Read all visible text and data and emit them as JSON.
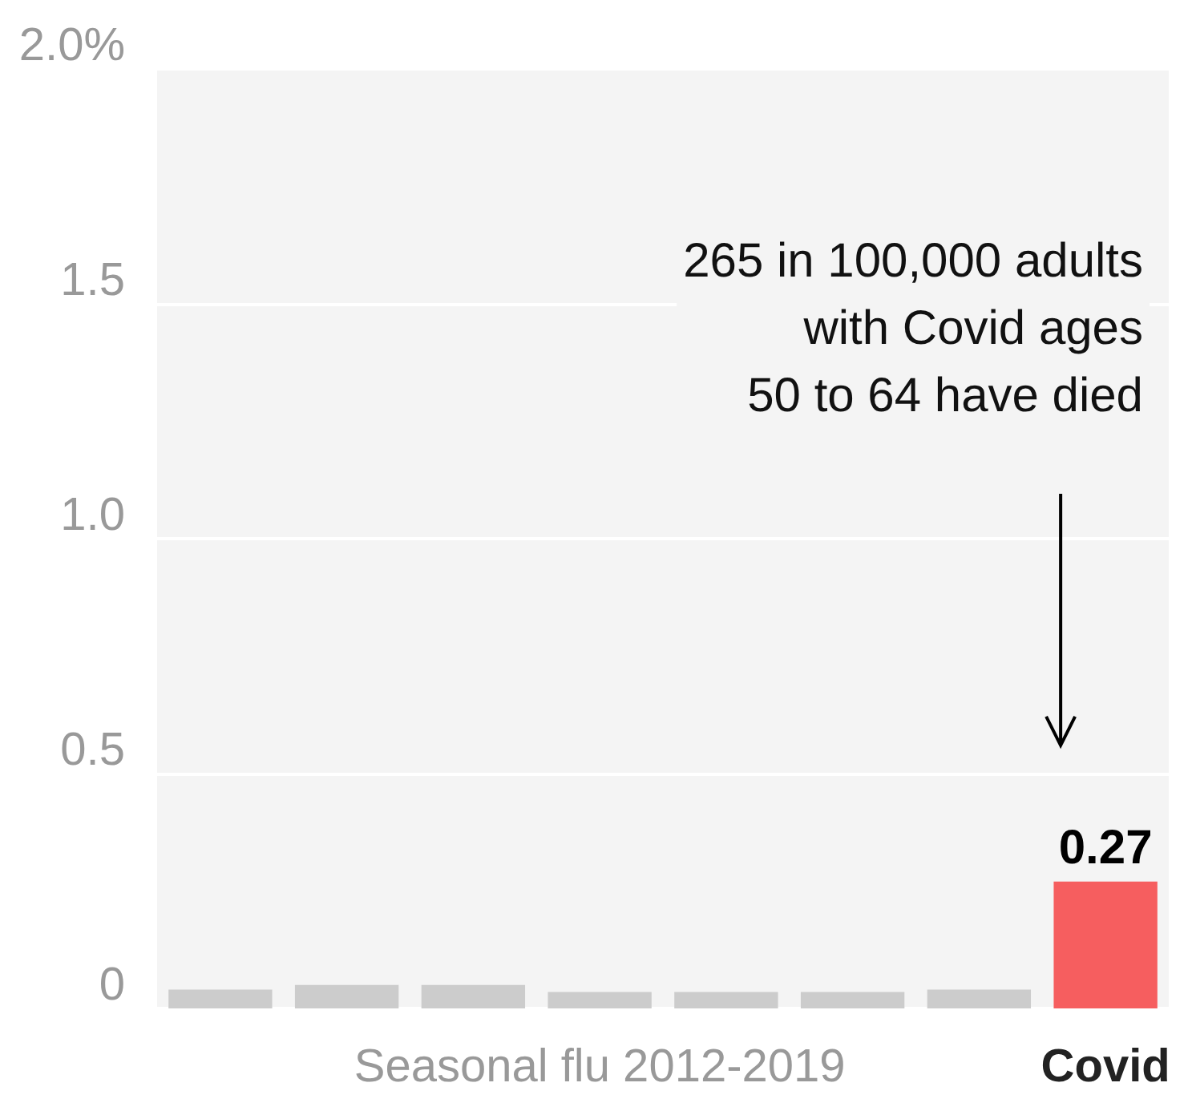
{
  "chart_data": {
    "type": "bar",
    "categories": [
      null,
      null,
      null,
      null,
      null,
      null,
      null,
      "Covid"
    ],
    "values": [
      0.04,
      0.05,
      0.05,
      0.035,
      0.035,
      0.035,
      0.04,
      0.27
    ],
    "colors": [
      "#cccccc",
      "#cccccc",
      "#cccccc",
      "#cccccc",
      "#cccccc",
      "#cccccc",
      "#cccccc",
      "#f65e5f"
    ],
    "value_labels": [
      null,
      null,
      null,
      null,
      null,
      null,
      null,
      "0.27"
    ],
    "xlabel": "Seasonal flu 2012-2019",
    "annotations": [
      "265 in 100,000 adults\nwith Covid ages\n50 to 64 have died"
    ],
    "ylim": [
      0,
      2
    ],
    "yticks": [
      0,
      0.5,
      {
        "value": 1,
        "label": "1.0"
      },
      1.5,
      {
        "value": 2,
        "label": "2.0%"
      }
    ],
    "grid": "y"
  }
}
